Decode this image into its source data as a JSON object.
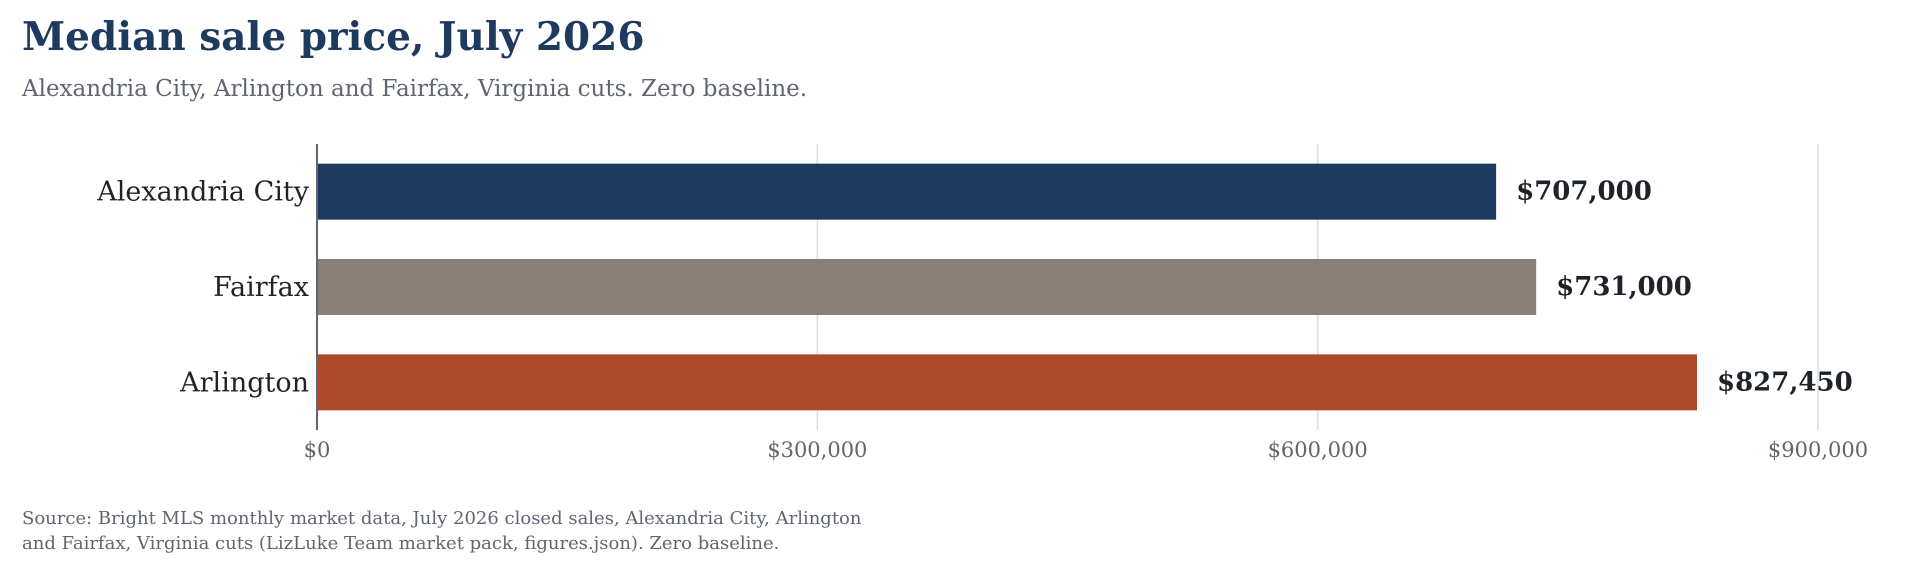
{
  "chart_data": {
    "type": "bar",
    "orientation": "horizontal",
    "title": "Median sale price, July 2026",
    "subtitle": "Alexandria City, Arlington and Fairfax, Virginia cuts. Zero baseline.",
    "categories": [
      "Alexandria City",
      "Fairfax",
      "Arlington"
    ],
    "values": [
      707000,
      731000,
      827450
    ],
    "value_labels": [
      "$707,000",
      "$731,000",
      "$827,450"
    ],
    "colors": [
      "#1f3a5f",
      "#8a7f78",
      "#ad4a2e"
    ],
    "xlim": [
      0,
      900000
    ],
    "x_ticks": [
      0,
      300000,
      600000,
      900000
    ],
    "x_tick_labels": [
      "$0",
      "$300,000",
      "$600,000",
      "$900,000"
    ],
    "xlabel": "",
    "ylabel": "",
    "grid": "vertical",
    "legend": "none"
  },
  "source_lines": [
    "Source: Bright MLS monthly market data, July 2026 closed sales, Alexandria City, Arlington",
    "and Fairfax, Virginia cuts (LizLuke Team market pack, figures.json). Zero baseline."
  ]
}
